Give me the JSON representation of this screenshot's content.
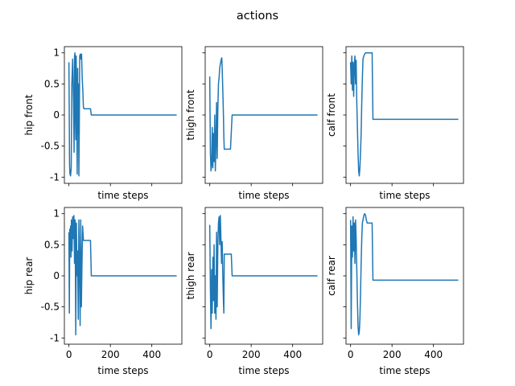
{
  "figure": {
    "title": "actions"
  },
  "chart_data": [
    {
      "type": "line",
      "ylabel": "hip front",
      "xlabel": "time steps",
      "xlim": [
        -22,
        545
      ],
      "ylim": [
        -1.1,
        1.1
      ],
      "xticks": [
        0,
        200,
        400
      ],
      "yticks": [
        -1.0,
        -0.5,
        0.0,
        0.5,
        1.0
      ],
      "series": [
        {
          "color": "#1f77b4",
          "x": [
            0,
            3,
            5,
            8,
            11,
            14,
            18,
            22,
            25,
            27,
            29,
            31,
            33,
            35,
            37,
            40,
            42,
            44,
            46,
            48,
            50,
            52,
            55,
            58,
            61,
            64,
            67,
            70,
            73,
            76,
            78,
            80,
            90,
            100,
            104,
            108,
            112,
            300,
            520
          ],
          "values": [
            0.85,
            -0.8,
            -0.95,
            -0.98,
            -0.85,
            0.5,
            0.9,
            0.2,
            -0.6,
            0.95,
            1.0,
            0.0,
            -0.4,
            0.95,
            0.3,
            -0.95,
            0.75,
            -0.3,
            0.5,
            -0.98,
            -0.2,
            0.95,
            0.98,
            0.9,
            0.98,
            0.6,
            0.4,
            0.12,
            0.1,
            0.1,
            0.1,
            0.1,
            0.1,
            0.1,
            0.1,
            0.0,
            0.0,
            0.0,
            0.0
          ]
        }
      ]
    },
    {
      "type": "line",
      "ylabel": "thigh front",
      "xlabel": "time steps",
      "xlim": [
        -22,
        545
      ],
      "ylim": [
        -1.1,
        1.1
      ],
      "xticks": [
        0,
        200,
        400
      ],
      "yticks": [
        -1.0,
        -0.5,
        0.0,
        0.5,
        1.0
      ],
      "series": [
        {
          "color": "#1f77b4",
          "x": [
            0,
            3,
            6,
            9,
            12,
            15,
            18,
            21,
            24,
            27,
            30,
            33,
            36,
            39,
            42,
            45,
            48,
            50,
            53,
            56,
            58,
            60,
            63,
            66,
            68,
            70,
            72,
            74,
            76,
            78,
            85,
            100,
            108,
            112,
            300,
            520
          ],
          "values": [
            0.62,
            -0.6,
            -0.9,
            -0.8,
            -0.2,
            -0.85,
            -0.3,
            -0.75,
            0.0,
            -0.9,
            -0.4,
            0.2,
            -0.7,
            0.1,
            0.5,
            0.6,
            0.75,
            0.8,
            0.85,
            0.9,
            0.92,
            0.75,
            0.4,
            0.0,
            -0.35,
            -0.55,
            -0.55,
            -0.55,
            -0.55,
            -0.55,
            -0.55,
            -0.55,
            0.0,
            0.0,
            0.0,
            0.0
          ]
        }
      ]
    },
    {
      "type": "line",
      "ylabel": "calf front",
      "xlabel": "time steps",
      "xlim": [
        -22,
        545
      ],
      "ylim": [
        -1.1,
        1.1
      ],
      "xticks": [
        0,
        200,
        400
      ],
      "yticks": [
        -1.0,
        -0.5,
        0.0,
        0.5,
        1.0
      ],
      "series": [
        {
          "color": "#1f77b4",
          "x": [
            0,
            3,
            6,
            9,
            12,
            15,
            18,
            21,
            24,
            27,
            30,
            33,
            36,
            39,
            42,
            45,
            48,
            51,
            54,
            57,
            60,
            64,
            68,
            72,
            75,
            80,
            90,
            100,
            104,
            108,
            112,
            300,
            520
          ],
          "values": [
            0.85,
            0.5,
            0.95,
            0.4,
            0.85,
            0.3,
            0.8,
            0.95,
            0.5,
            0.88,
            0.2,
            -0.2,
            -0.6,
            -0.9,
            -0.98,
            -0.85,
            -0.6,
            -0.3,
            0.2,
            0.6,
            0.9,
            0.95,
            0.98,
            1.0,
            1.0,
            1.0,
            1.0,
            1.0,
            1.0,
            -0.07,
            -0.07,
            -0.07,
            -0.07
          ]
        }
      ]
    },
    {
      "type": "line",
      "ylabel": "hip rear",
      "xlabel": "time steps",
      "xlim": [
        -22,
        545
      ],
      "ylim": [
        -1.1,
        1.1
      ],
      "xticks": [
        0,
        200,
        400
      ],
      "yticks": [
        -1.0,
        -0.5,
        0.0,
        0.5,
        1.0
      ],
      "series": [
        {
          "color": "#1f77b4",
          "x": [
            0,
            2,
            4,
            6,
            8,
            10,
            12,
            15,
            18,
            21,
            24,
            27,
            30,
            33,
            36,
            39,
            42,
            45,
            48,
            51,
            54,
            57,
            60,
            63,
            66,
            70,
            75,
            80,
            90,
            100,
            104,
            108,
            112,
            300,
            520
          ],
          "values": [
            0.7,
            -0.6,
            0.75,
            0.5,
            0.8,
            0.3,
            0.9,
            0.4,
            0.95,
            0.6,
            0.97,
            0.2,
            0.9,
            -0.95,
            0.85,
            0.0,
            0.4,
            -0.7,
            0.9,
            0.2,
            -0.8,
            0.9,
            -0.5,
            0.2,
            0.8,
            0.57,
            0.57,
            0.57,
            0.57,
            0.57,
            0.57,
            0.0,
            0.0,
            0.0,
            0.0
          ]
        }
      ]
    },
    {
      "type": "line",
      "ylabel": "thigh rear",
      "xlabel": "time steps",
      "xlim": [
        -22,
        545
      ],
      "ylim": [
        -1.1,
        1.1
      ],
      "xticks": [
        0,
        200,
        400
      ],
      "yticks": [
        -1.0,
        -0.5,
        0.0,
        0.5,
        1.0
      ],
      "series": [
        {
          "color": "#1f77b4",
          "x": [
            0,
            3,
            6,
            9,
            12,
            15,
            18,
            21,
            24,
            27,
            30,
            33,
            36,
            39,
            42,
            45,
            48,
            51,
            54,
            57,
            60,
            63,
            66,
            68,
            70,
            74,
            78,
            85,
            100,
            104,
            108,
            112,
            300,
            520
          ],
          "values": [
            0.82,
            -0.2,
            -0.85,
            0.1,
            -0.6,
            0.3,
            -0.4,
            0.5,
            -0.6,
            0.0,
            -0.7,
            0.7,
            -0.5,
            0.5,
            0.85,
            0.95,
            0.5,
            0.97,
            0.6,
            0.2,
            0.55,
            0.0,
            -0.4,
            -0.6,
            0.35,
            0.35,
            0.35,
            0.35,
            0.35,
            0.35,
            0.0,
            0.0,
            0.0,
            0.0
          ]
        }
      ]
    },
    {
      "type": "line",
      "ylabel": "calf rear",
      "xlabel": "time steps",
      "xlim": [
        -22,
        545
      ],
      "ylim": [
        -1.1,
        1.1
      ],
      "xticks": [
        0,
        200,
        400
      ],
      "yticks": [
        -1.0,
        -0.5,
        0.0,
        0.5,
        1.0
      ],
      "series": [
        {
          "color": "#1f77b4",
          "x": [
            0,
            3,
            6,
            9,
            12,
            15,
            18,
            21,
            24,
            27,
            30,
            33,
            36,
            39,
            42,
            45,
            48,
            51,
            54,
            57,
            60,
            64,
            68,
            72,
            76,
            80,
            90,
            100,
            104,
            108,
            112,
            300,
            520
          ],
          "values": [
            0.9,
            -0.85,
            0.8,
            0.3,
            0.95,
            0.4,
            0.85,
            0.2,
            0.9,
            0.6,
            0.1,
            -0.4,
            -0.8,
            -0.95,
            -0.9,
            -0.7,
            -0.3,
            0.2,
            0.6,
            0.85,
            0.9,
            0.97,
            1.0,
            0.98,
            0.9,
            0.85,
            0.85,
            0.85,
            0.85,
            -0.07,
            -0.07,
            -0.07,
            -0.07
          ]
        }
      ]
    }
  ]
}
